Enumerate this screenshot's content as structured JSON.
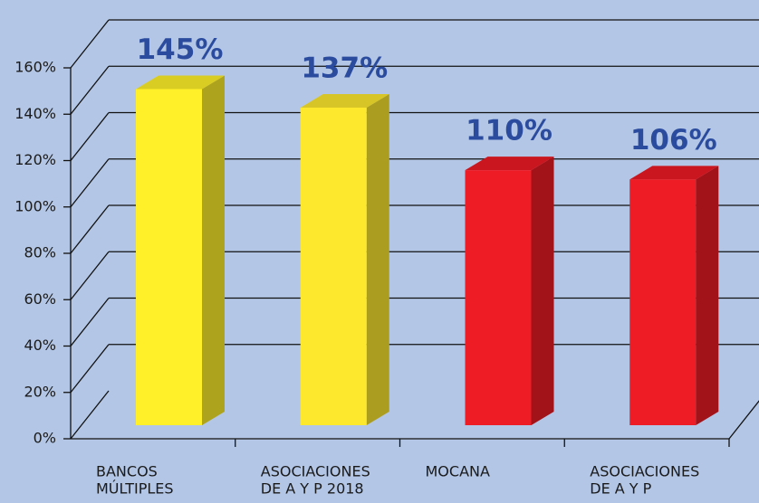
{
  "chart_data": {
    "type": "bar3d",
    "categories": [
      [
        "BANCOS",
        "MÚLTIPLES"
      ],
      [
        "ASOCIACIONES",
        "DE A Y P 2018"
      ],
      [
        "MOCANA"
      ],
      [
        "ASOCIACIONES",
        "DE A Y P"
      ]
    ],
    "values": [
      145,
      137,
      110,
      106
    ],
    "value_labels": [
      "145%",
      "137%",
      "110%",
      "106%"
    ],
    "colors": [
      "#fff02a",
      "#fde82e",
      "#ee1c25",
      "#ee1c25"
    ],
    "ylim": [
      0,
      160
    ],
    "yticks": [
      {
        "value": 0,
        "label": "0%"
      },
      {
        "value": 20,
        "label": "20%"
      },
      {
        "value": 40,
        "label": "40%"
      },
      {
        "value": 60,
        "label": "60%"
      },
      {
        "value": 80,
        "label": "80%"
      },
      {
        "value": 100,
        "label": "100%"
      },
      {
        "value": 120,
        "label": "120%"
      },
      {
        "value": 140,
        "label": "140%"
      },
      {
        "value": 160,
        "label": "160%"
      }
    ],
    "grid": true
  }
}
